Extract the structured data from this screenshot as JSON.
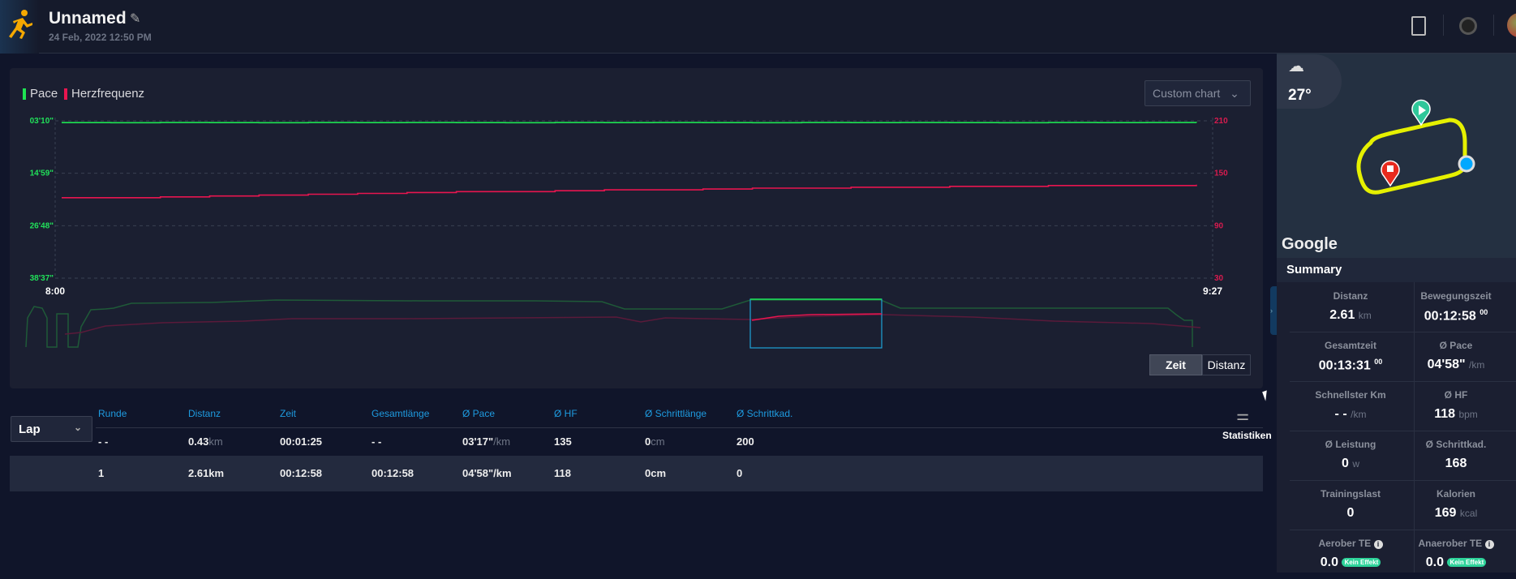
{
  "header": {
    "title": "Unnamed",
    "date": "24 Feb, 2022 12:50 PM",
    "icons": [
      "runner-icon",
      "edit-pencil-icon",
      "export-icon",
      "device-ring-icon",
      "avatar"
    ]
  },
  "chart": {
    "legend": [
      {
        "label": "Pace",
        "color": "#1ee352"
      },
      {
        "label": "Herzfrequenz",
        "color": "#e8154f"
      }
    ],
    "custom_chart_label": "Custom chart",
    "toggle": {
      "zeit": "Zeit",
      "distanz": "Distanz",
      "active": "Zeit"
    }
  },
  "chart_data": {
    "type": "line",
    "x_ticks": [
      "8:00",
      "9:27"
    ],
    "y_left": {
      "ticks": [
        "03'10\"",
        "14'59\"",
        "26'48\"",
        "38'37\""
      ],
      "inverted": true,
      "color": "#21e05a"
    },
    "y_right": {
      "ticks": [
        "210",
        "150",
        "90",
        "30"
      ],
      "range": [
        30,
        210
      ],
      "color": "#d81b4f"
    },
    "grid": true,
    "legend": "top-left",
    "series": [
      {
        "name": "Pace",
        "color": "#1ee352",
        "values": [
          "03'34\"",
          "03'35\"",
          "03'33\"",
          "03'34\"",
          "03'35\"",
          "03'33\"",
          "03'34\"",
          "03'33\"",
          "03'34\"",
          "03'35\"",
          "03'33\"",
          "03'34\"",
          "03'33\"",
          "03'34\"",
          "03'35\"",
          "03'33\"",
          "03'34\"",
          "03'33\"",
          "03'34\"",
          "03'35\"",
          "03'33\"",
          "03'34\"",
          "03'33\"",
          "03'34\""
        ]
      },
      {
        "name": "Herzfrequenz",
        "color": "#e8154f",
        "values": [
          122,
          122,
          123,
          124,
          125,
          126,
          127,
          128,
          129,
          129,
          130,
          131,
          131,
          132,
          133,
          133,
          134,
          134,
          135,
          135,
          136,
          136,
          136,
          137
        ]
      }
    ]
  },
  "laps": {
    "selector": "Lap",
    "columns": [
      "Runde",
      "Distanz",
      "Zeit",
      "Gesamtlänge",
      "Ø Pace",
      "Ø HF",
      "Ø Schrittlänge",
      "Ø Schrittkad."
    ],
    "rows": [
      {
        "runde": "- -",
        "distanz": "0.43",
        "distanz_unit": "km",
        "zeit": "00:01:25",
        "gesamt": "- -",
        "pace": "03'17\"",
        "pace_unit": "/km",
        "hf": "135",
        "schritt": "0",
        "schritt_unit": "cm",
        "kad": "200"
      },
      {
        "runde": "1",
        "distanz": "2.61km",
        "zeit": "00:12:58",
        "gesamt": "00:12:58",
        "pace": "04'58\"/km",
        "hf": "118",
        "schritt": "0cm",
        "kad": "0"
      }
    ],
    "statistics_label": "Statistiken"
  },
  "map": {
    "temperature": "27°",
    "provider": "Google",
    "route_color": "#e5f000"
  },
  "summary": {
    "title": "Summary",
    "items": [
      {
        "label": "Distanz",
        "value": "2.61",
        "unit": "km"
      },
      {
        "label": "Bewegungszeit",
        "value": "00:12:58",
        "sup": "00"
      },
      {
        "label": "Gesamtzeit",
        "value": "00:13:31",
        "sup": "00"
      },
      {
        "label": "Ø Pace",
        "value": "04'58\"",
        "unit": "/km"
      },
      {
        "label": "Schnellster Km",
        "value": "- -",
        "unit": "/km"
      },
      {
        "label": "Ø HF",
        "value": "118",
        "unit": "bpm"
      },
      {
        "label": "Ø Leistung",
        "value": "0",
        "unit": "w"
      },
      {
        "label": "Ø Schrittkad.",
        "value": "168"
      },
      {
        "label": "Trainingslast",
        "value": "0"
      },
      {
        "label": "Kalorien",
        "value": "169",
        "unit": "kcal"
      },
      {
        "label": "Aerober TE",
        "value": "0.0",
        "badge": "Kein Effekt"
      },
      {
        "label": "Anaerober TE",
        "value": "0.0",
        "badge": "Kein Effekt"
      }
    ]
  }
}
